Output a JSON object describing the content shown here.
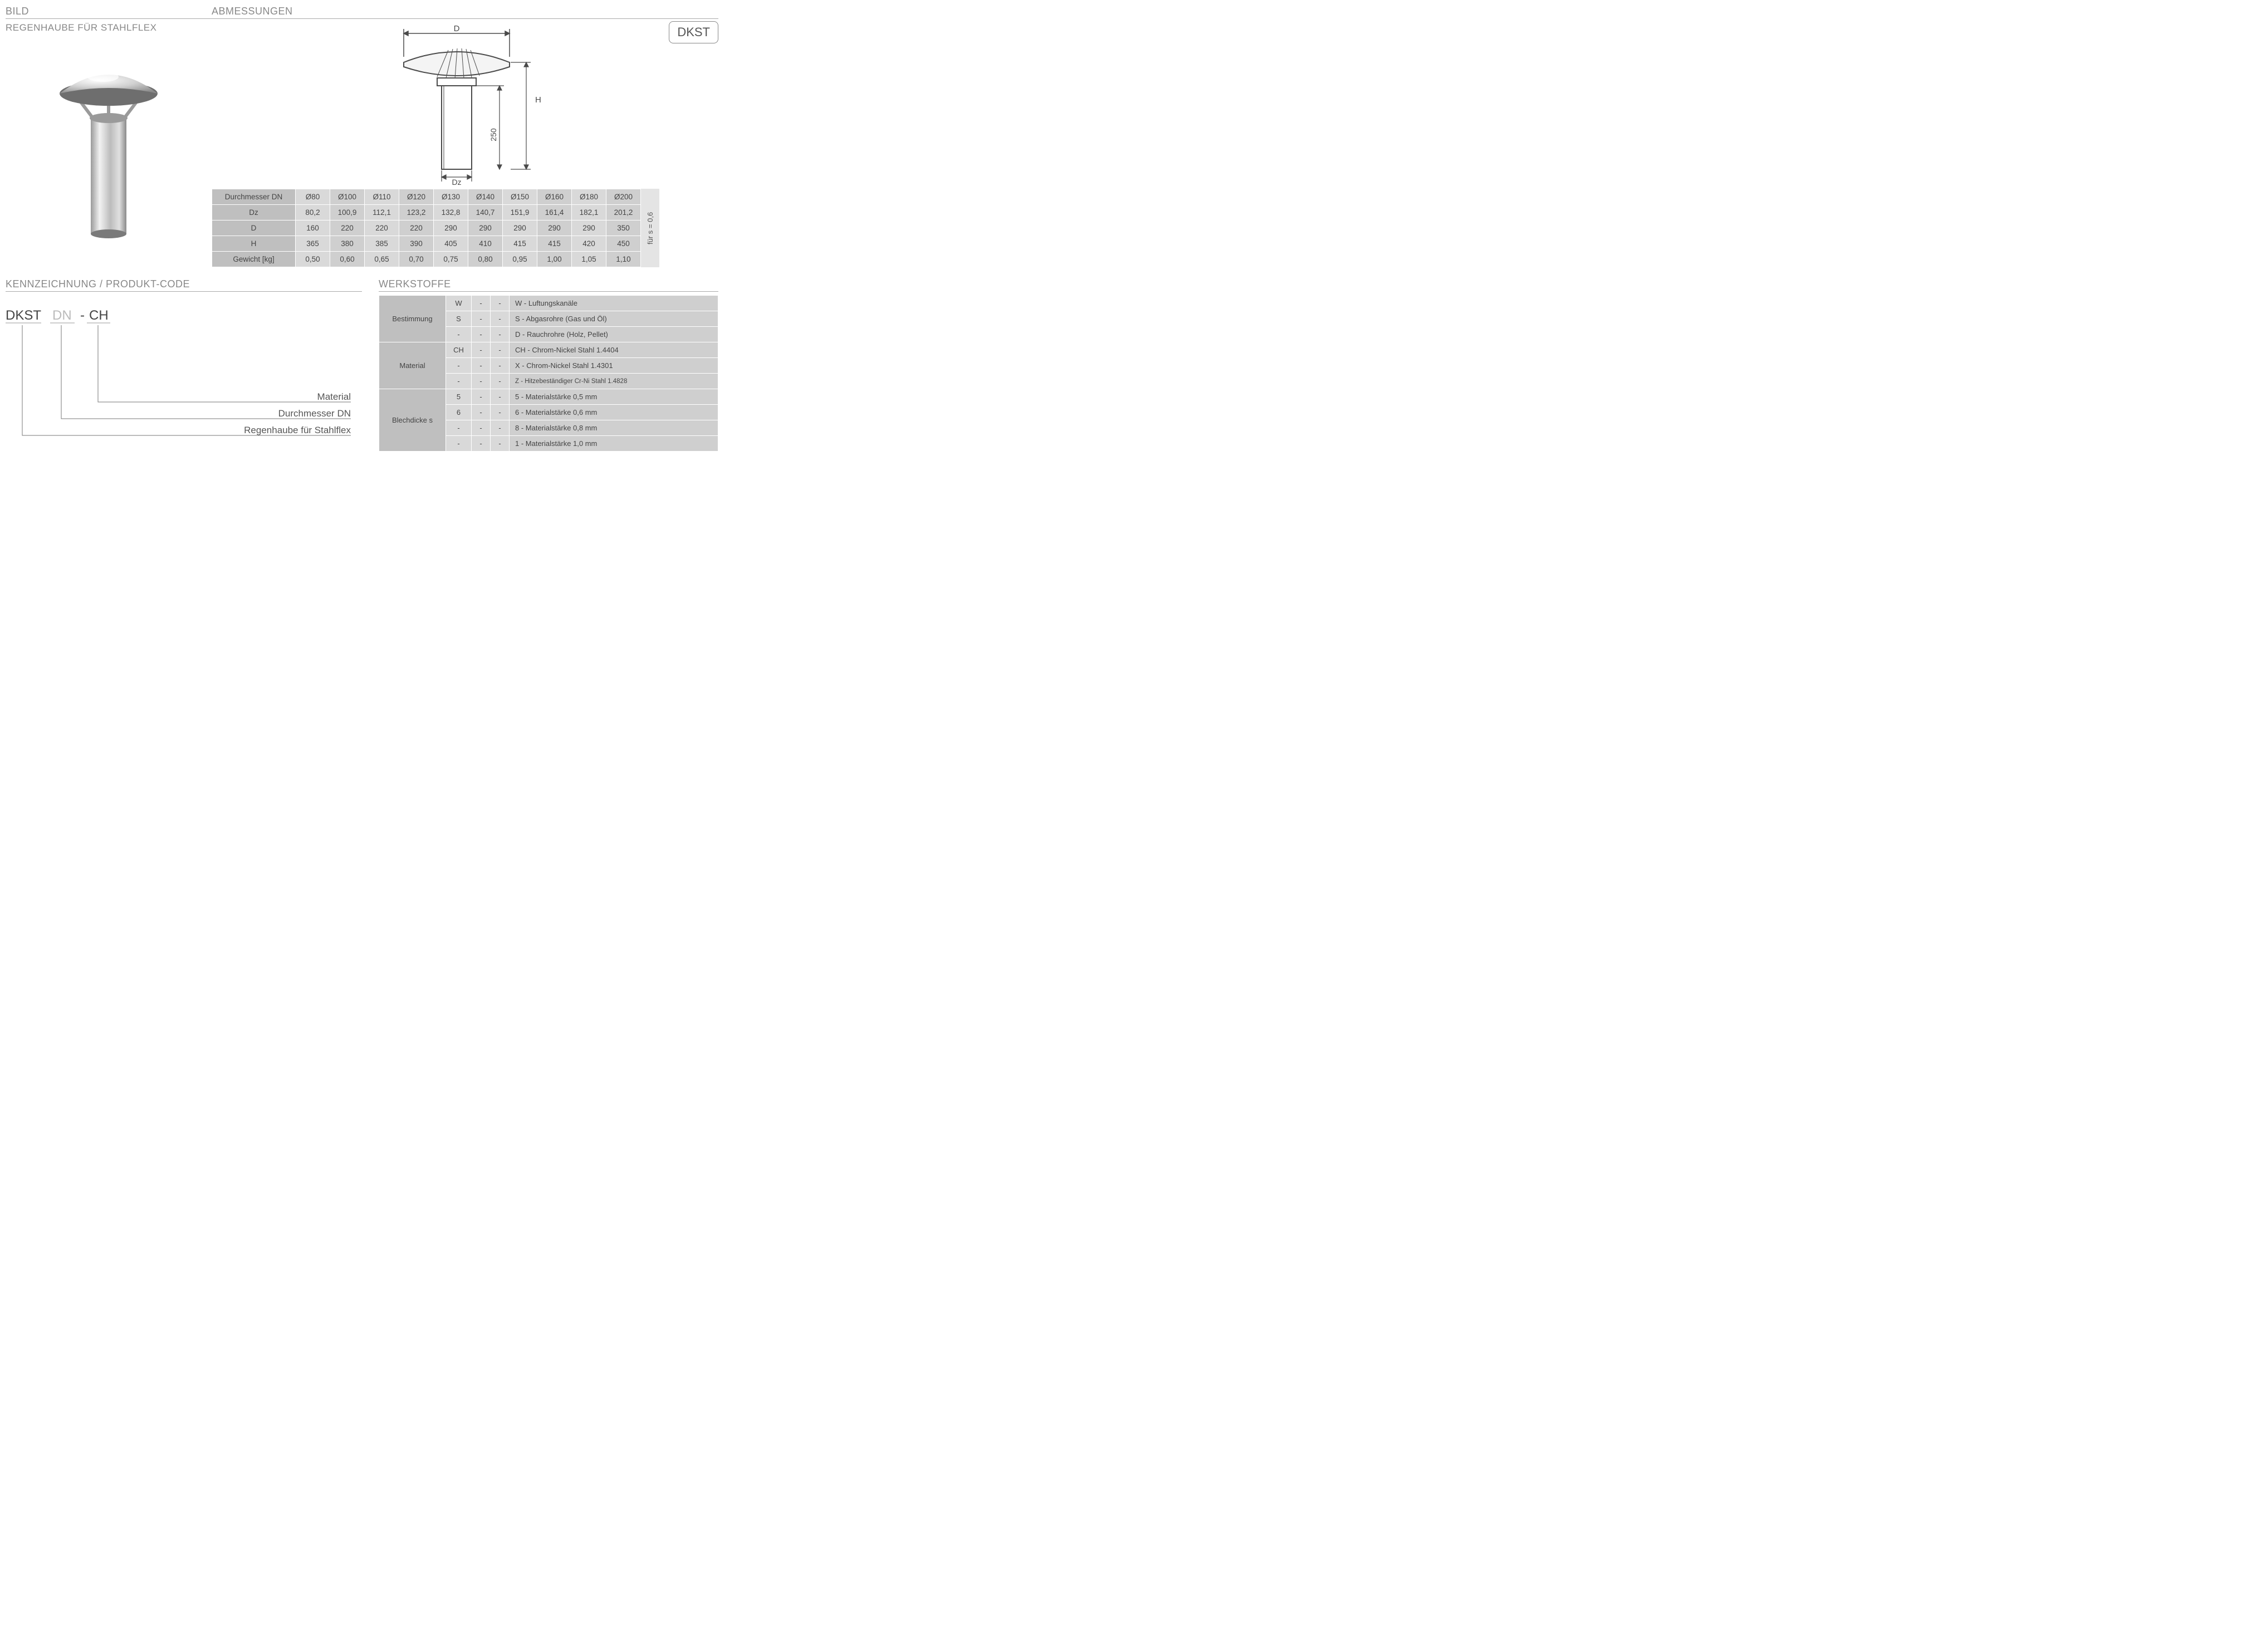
{
  "headings": {
    "bild": "BILD",
    "abmessungen": "ABMESSUNGEN",
    "kennzeichnung": "KENNZEICHNUNG  / PRODUKT-CODE",
    "werkstoffe": "WERKSTOFFE"
  },
  "subheading": "REGENHAUBE FÜR STAHLFLEX",
  "badge": "DKST",
  "diagram_labels": {
    "D": "D",
    "Dz": "Dz",
    "H": "H",
    "shaft": "250"
  },
  "dim_table": {
    "row_headers": [
      "Durchmesser DN",
      "Dz",
      "D",
      "H",
      "Gewicht [kg]"
    ],
    "columns": [
      "Ø80",
      "Ø100",
      "Ø110",
      "Ø120",
      "Ø130",
      "Ø140",
      "Ø150",
      "Ø160",
      "Ø180",
      "Ø200"
    ],
    "dz": [
      "80,2",
      "100,9",
      "112,1",
      "123,2",
      "132,8",
      "140,7",
      "151,9",
      "161,4",
      "182,1",
      "201,2"
    ],
    "d": [
      "160",
      "220",
      "220",
      "220",
      "290",
      "290",
      "290",
      "290",
      "290",
      "350"
    ],
    "h": [
      "365",
      "380",
      "385",
      "390",
      "405",
      "410",
      "415",
      "415",
      "420",
      "450"
    ],
    "gewicht": [
      "0,50",
      "0,60",
      "0,65",
      "0,70",
      "0,75",
      "0,80",
      "0,95",
      "1,00",
      "1,05",
      "1,10"
    ],
    "side_caption": "für s = 0,6"
  },
  "code_diagram": {
    "parts": [
      {
        "text": "DKST",
        "muted": false
      },
      {
        "text": "DN",
        "muted": true
      },
      {
        "text": "-",
        "muted": false,
        "sep": true
      },
      {
        "text": "CH",
        "muted": false
      }
    ],
    "callouts": [
      "Material",
      "Durchmesser DN",
      "Regenhaube für Stahlflex"
    ]
  },
  "werkstoffe": {
    "groups": [
      {
        "label": "Bestimmung",
        "rows": [
          {
            "c1": "W",
            "c2": "-",
            "c3": "-",
            "desc": "W - Luftungskanäle"
          },
          {
            "c1": "S",
            "c2": "-",
            "c3": "-",
            "desc": "S - Abgasrohre (Gas und Öl)"
          },
          {
            "c1": "-",
            "c2": "-",
            "c3": "-",
            "desc": "D - Rauchrohre (Holz, Pellet)"
          }
        ]
      },
      {
        "label": "Material",
        "rows": [
          {
            "c1": "CH",
            "c2": "-",
            "c3": "-",
            "desc": "CH - Chrom-Nickel Stahl 1.4404"
          },
          {
            "c1": "-",
            "c2": "-",
            "c3": "-",
            "desc": "X - Chrom-Nickel Stahl 1.4301"
          },
          {
            "c1": "-",
            "c2": "-",
            "c3": "-",
            "desc": "Z - Hitzebeständiger Cr-Ni Stahl 1.4828",
            "small": true
          }
        ]
      },
      {
        "label": "Blechdicke s",
        "rows": [
          {
            "c1": "5",
            "c2": "-",
            "c3": "-",
            "desc": "5 - Materialstärke 0,5 mm"
          },
          {
            "c1": "6",
            "c2": "-",
            "c3": "-",
            "desc": "6 - Materialstärke 0,6 mm"
          },
          {
            "c1": "-",
            "c2": "-",
            "c3": "-",
            "desc": "8 - Materialstärke 0,8 mm"
          },
          {
            "c1": "-",
            "c2": "-",
            "c3": "-",
            "desc": "1 - Materialstärke 1,0 mm"
          }
        ]
      }
    ]
  },
  "colors": {
    "heading": "#888888",
    "rule": "#aaaaaa",
    "hdr_bg": "#bfbfbf",
    "cell_bg": "#d9d9d9",
    "cell_alt": "#cfcfcf",
    "side_bg": "#e4e4e4",
    "text": "#444444",
    "steel_light": "#e8e8e8",
    "steel_mid": "#bdbdbd",
    "steel_dark": "#7a7a7a",
    "line": "#4a4a4a"
  }
}
